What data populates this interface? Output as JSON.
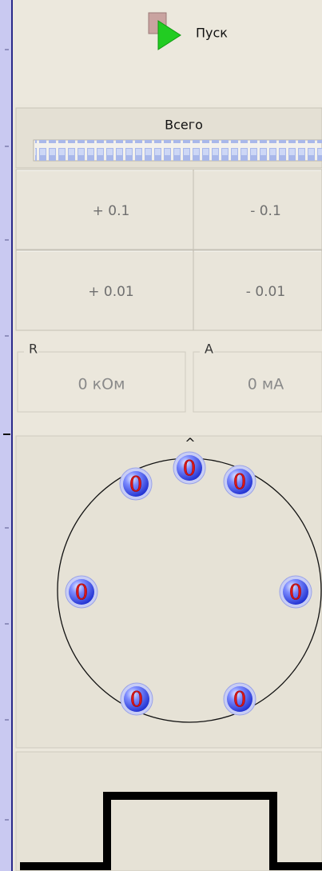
{
  "start_button": {
    "label": "Пуск"
  },
  "progress": {
    "label": "Всего"
  },
  "buttons": [
    "+ 0.1",
    "- 0.1",
    "+ 0.01",
    "- 0.01"
  ],
  "readouts": [
    {
      "label": "R",
      "value": "0 кОм"
    },
    {
      "label": "A",
      "value": "0 мА"
    }
  ],
  "electrodes": {
    "marker": "^",
    "labels": [
      "0",
      "0",
      "0",
      "0",
      "0",
      "0",
      "0"
    ]
  }
}
